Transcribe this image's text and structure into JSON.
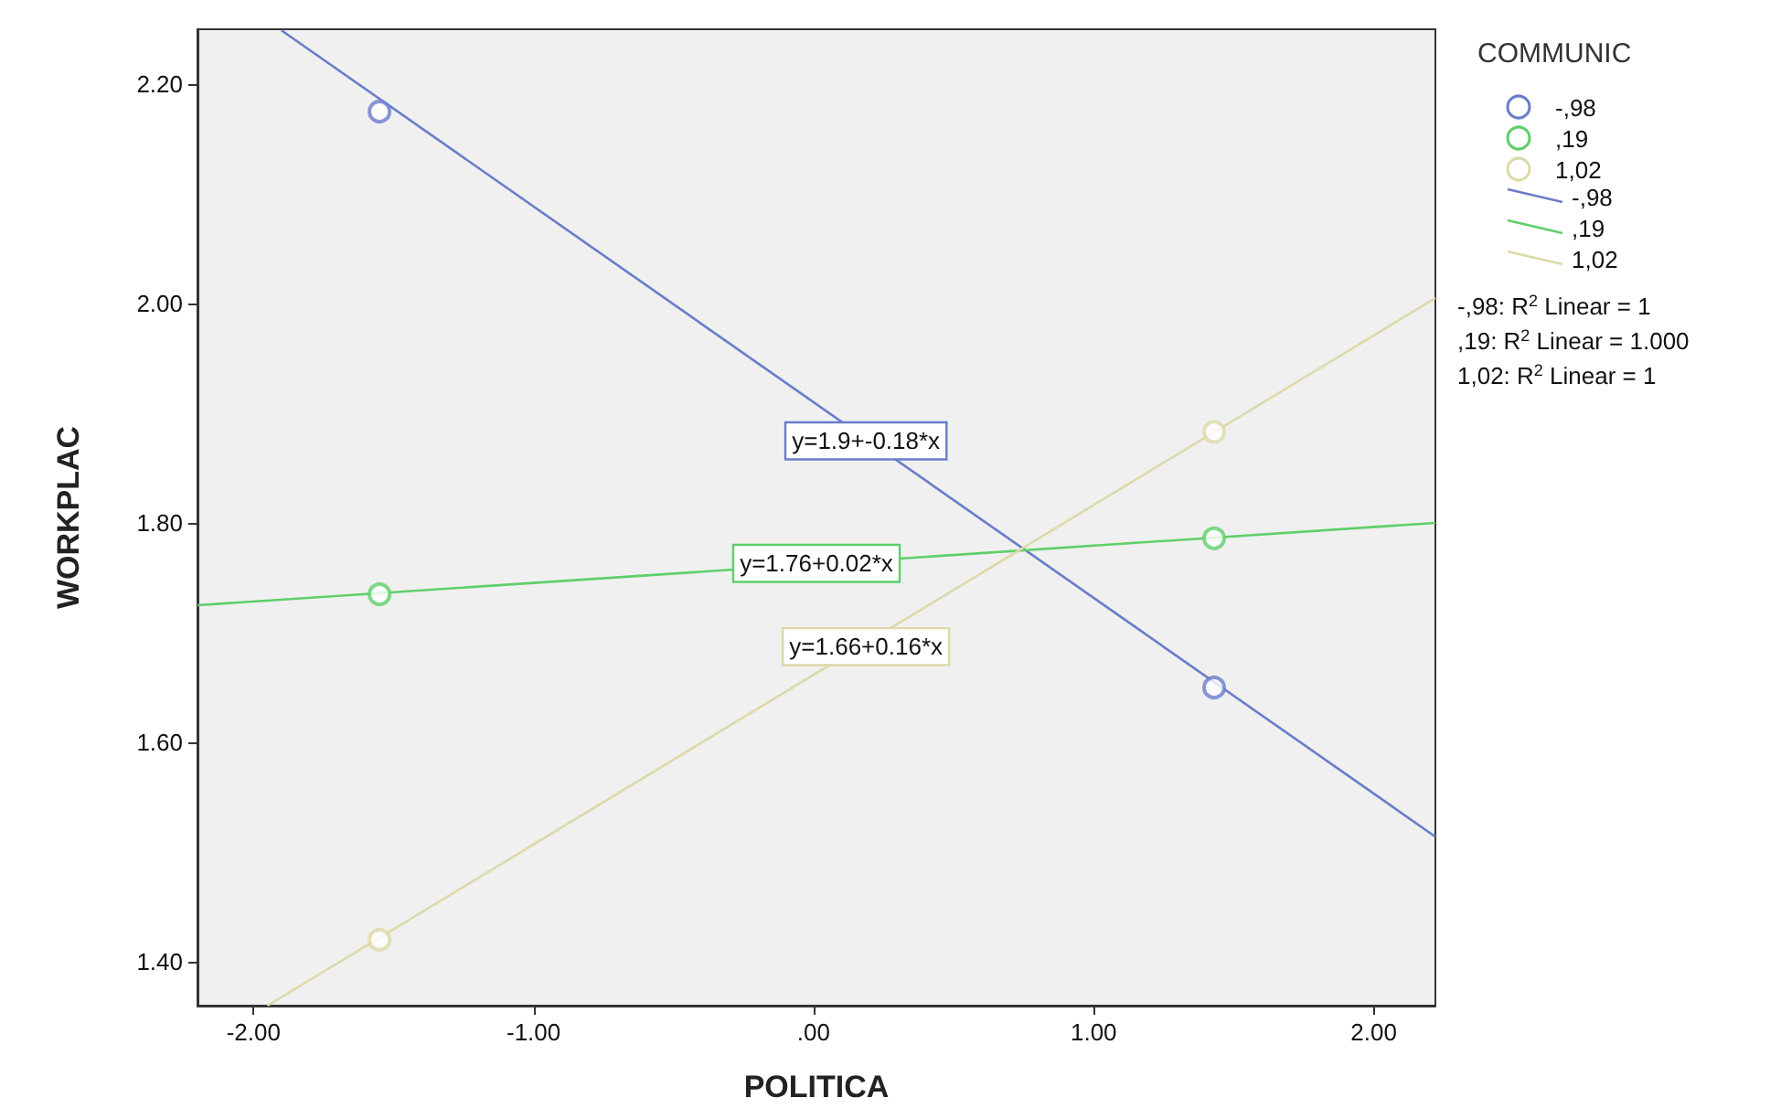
{
  "chart_data": {
    "type": "scatter",
    "xlabel": "POLITICA",
    "ylabel": "WORKPLAC",
    "legend_title": "COMMUNIC",
    "legend": "right",
    "grid": false,
    "marker": "circle",
    "xlim": [
      -2.2,
      2.22
    ],
    "xticks": [
      {
        "value": -2,
        "label": "-2.00"
      },
      {
        "value": -1,
        "label": "-1.00"
      },
      {
        "value": 0,
        "label": ".00"
      },
      {
        "value": 1,
        "label": "1.00"
      },
      {
        "value": 2,
        "label": "2.00"
      }
    ],
    "ylim": [
      1.36,
      2.25
    ],
    "yticks": [
      {
        "value": 1.4,
        "label": "1.40"
      },
      {
        "value": 1.6,
        "label": "1.60"
      },
      {
        "value": 1.8,
        "label": "1.80"
      },
      {
        "value": 2.0,
        "label": "2.00"
      },
      {
        "value": 2.2,
        "label": "2.20"
      }
    ],
    "series": [
      {
        "name": "-,98",
        "color": "#6a7dc9",
        "x": [
          -1.55,
          1.43
        ],
        "values": [
          2.175,
          1.65
        ]
      },
      {
        "name": ",19",
        "color": "#5fcf6a",
        "x": [
          -1.55,
          1.43
        ],
        "values": [
          1.735,
          1.786
        ]
      },
      {
        "name": "1,02",
        "color": "#ddd9a8",
        "x": [
          -1.55,
          1.43
        ],
        "values": [
          1.42,
          1.883
        ]
      },
      {
        "name": "-,98",
        "type": "line",
        "marker": "none",
        "color": "#6a7dc9",
        "x": [
          -1.9,
          2.22
        ],
        "values": [
          2.249,
          1.514
        ]
      },
      {
        "name": ",19",
        "type": "line",
        "marker": "none",
        "color": "#5fcf6a",
        "x": [
          -2.2,
          2.22
        ],
        "values": [
          1.725,
          1.8
        ]
      },
      {
        "name": "1,02",
        "type": "line",
        "marker": "none",
        "color": "#ddd9a8",
        "x": [
          -1.95,
          2.22
        ],
        "values": [
          1.36,
          2.005
        ]
      }
    ],
    "annotations": [
      "y=1.9+-0.18*x",
      "y=1.76+0.02*x",
      "y=1.66+0.16*x",
      "-,98: R$^{2}$ Linear = 1",
      ",19: R$^{2}$ Linear = 1.000",
      "1,02: R$^{2}$ Linear = 1"
    ]
  }
}
